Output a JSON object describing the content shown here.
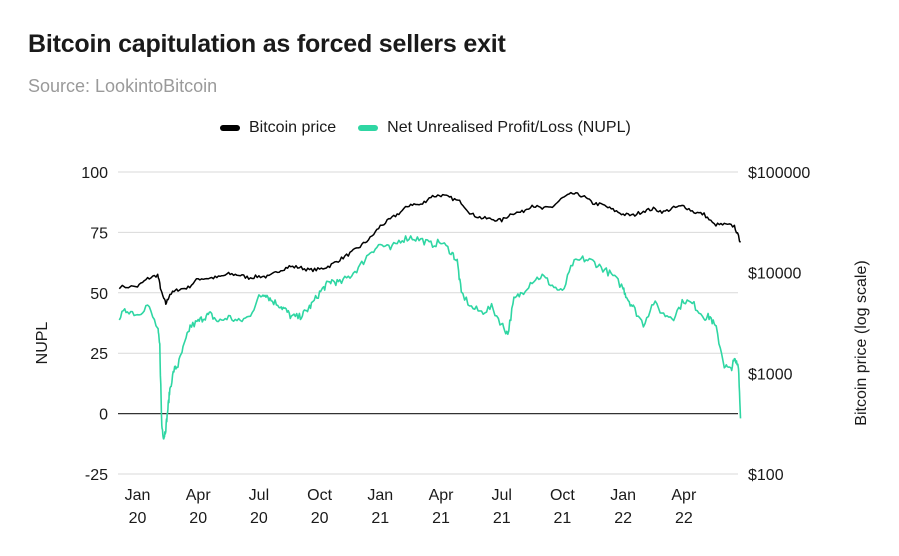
{
  "chart_data": {
    "type": "line",
    "title": "Bitcoin capitulation as forced sellers exit",
    "subtitle": "Source: LookintoBitcoin",
    "legend": {
      "price_label": "Bitcoin price",
      "nupl_label": "Net Unrealised Profit/Loss (NUPL)"
    },
    "colors": {
      "price": "#000000",
      "nupl": "#2fd6a3",
      "grid": "#d9d9d9",
      "zero": "#333333"
    },
    "ylabel_left": "NUPL",
    "ylabel_right": "Bitcoin price (log scale)",
    "ylim_left": [
      -25,
      100
    ],
    "ylim_right": [
      100,
      100000
    ],
    "left_ticks": [
      {
        "value": 100,
        "label": "100"
      },
      {
        "value": 75,
        "label": "75"
      },
      {
        "value": 50,
        "label": "50"
      },
      {
        "value": 25,
        "label": "25"
      },
      {
        "value": 0,
        "label": "0"
      },
      {
        "value": -25,
        "label": "-25"
      }
    ],
    "right_ticks": [
      {
        "value": 100000,
        "label": "$100000"
      },
      {
        "value": 10000,
        "label": "$10000"
      },
      {
        "value": 1000,
        "label": "$1000"
      },
      {
        "value": 100,
        "label": "$100"
      }
    ],
    "x_range_months": [
      0,
      29.8
    ],
    "x_ticks": [
      {
        "month": 0,
        "line1": "Jan",
        "line2": "20"
      },
      {
        "month": 3,
        "line1": "Apr",
        "line2": "20"
      },
      {
        "month": 6,
        "line1": "Jul",
        "line2": "20"
      },
      {
        "month": 9,
        "line1": "Oct",
        "line2": "20"
      },
      {
        "month": 12,
        "line1": "Jan",
        "line2": "21"
      },
      {
        "month": 15,
        "line1": "Apr",
        "line2": "21"
      },
      {
        "month": 18,
        "line1": "Jul",
        "line2": "21"
      },
      {
        "month": 21,
        "line1": "Oct",
        "line2": "21"
      },
      {
        "month": 24,
        "line1": "Jan",
        "line2": "22"
      },
      {
        "month": 27,
        "line1": "Apr",
        "line2": "22"
      }
    ],
    "series": [
      {
        "name": "Bitcoin price",
        "axis": "right",
        "x": [
          -0.9,
          0,
          0.5,
          1.0,
          1.2,
          1.4,
          1.6,
          2.0,
          2.5,
          3.0,
          3.5,
          4.0,
          4.5,
          5.0,
          5.5,
          6.0,
          6.5,
          7.0,
          7.5,
          8.0,
          8.5,
          9.0,
          9.5,
          10.0,
          10.5,
          11.0,
          11.5,
          12.0,
          12.5,
          13.0,
          13.5,
          14.0,
          14.5,
          15.0,
          15.5,
          16.0,
          16.5,
          17.0,
          17.5,
          18.0,
          18.5,
          19.0,
          19.5,
          20.0,
          20.5,
          21.0,
          21.5,
          22.0,
          22.5,
          23.0,
          23.5,
          24.0,
          24.5,
          25.0,
          25.5,
          26.0,
          26.5,
          27.0,
          27.5,
          28.0,
          28.5,
          29.0,
          29.5,
          29.8
        ],
        "values": [
          7200,
          7300,
          8700,
          9500,
          6200,
          4900,
          6100,
          6800,
          7100,
          8700,
          8800,
          9000,
          9700,
          9500,
          8900,
          9200,
          9100,
          10500,
          11500,
          11300,
          10600,
          10800,
          11700,
          13500,
          15500,
          18200,
          22000,
          29000,
          34000,
          40000,
          48000,
          47000,
          57000,
          59000,
          55000,
          50000,
          38000,
          35000,
          34000,
          33000,
          39000,
          40000,
          47000,
          43000,
          45000,
          55000,
          61000,
          58000,
          49000,
          47000,
          42000,
          38000,
          37000,
          41000,
          43000,
          40000,
          44000,
          46000,
          40000,
          38000,
          30000,
          30000,
          29000,
          20000
        ]
      },
      {
        "name": "Net Unrealised Profit/Loss (NUPL)",
        "axis": "left",
        "x": [
          -0.9,
          -0.5,
          0,
          0.5,
          1.0,
          1.1,
          1.2,
          1.3,
          1.4,
          1.5,
          1.6,
          1.8,
          2.0,
          2.3,
          2.6,
          3.0,
          3.3,
          3.6,
          4.0,
          4.5,
          5.0,
          5.5,
          6.0,
          6.3,
          6.6,
          7.0,
          7.3,
          7.6,
          8.0,
          8.3,
          8.6,
          9.0,
          9.3,
          9.6,
          10.0,
          10.5,
          11.0,
          11.5,
          12.0,
          12.5,
          13.0,
          13.5,
          14.0,
          14.5,
          15.0,
          15.5,
          15.8,
          16.0,
          16.5,
          17.0,
          17.5,
          18.0,
          18.3,
          18.6,
          19.0,
          19.5,
          20.0,
          20.5,
          21.0,
          21.5,
          22.0,
          22.5,
          23.0,
          23.5,
          24.0,
          24.2,
          24.5,
          25.0,
          25.5,
          26.0,
          26.5,
          27.0,
          27.5,
          28.0,
          28.3,
          28.6,
          29.0,
          29.3,
          29.5,
          29.7,
          29.8
        ],
        "values": [
          40,
          43,
          41,
          45,
          35,
          28,
          -5,
          -10,
          -6,
          2,
          10,
          18,
          20,
          28,
          36,
          38,
          40,
          41,
          38,
          40,
          38,
          40,
          48,
          50,
          47,
          45,
          43,
          40,
          40,
          42,
          45,
          50,
          53,
          55,
          54,
          57,
          61,
          67,
          70,
          68,
          72,
          73,
          72,
          70,
          71,
          67,
          63,
          50,
          44,
          42,
          44,
          37,
          33,
          47,
          50,
          55,
          57,
          53,
          50,
          62,
          64,
          63,
          60,
          57,
          52,
          48,
          44,
          37,
          46,
          41,
          40,
          47,
          45,
          40,
          40,
          35,
          20,
          18,
          22,
          20,
          -2
        ]
      }
    ]
  }
}
